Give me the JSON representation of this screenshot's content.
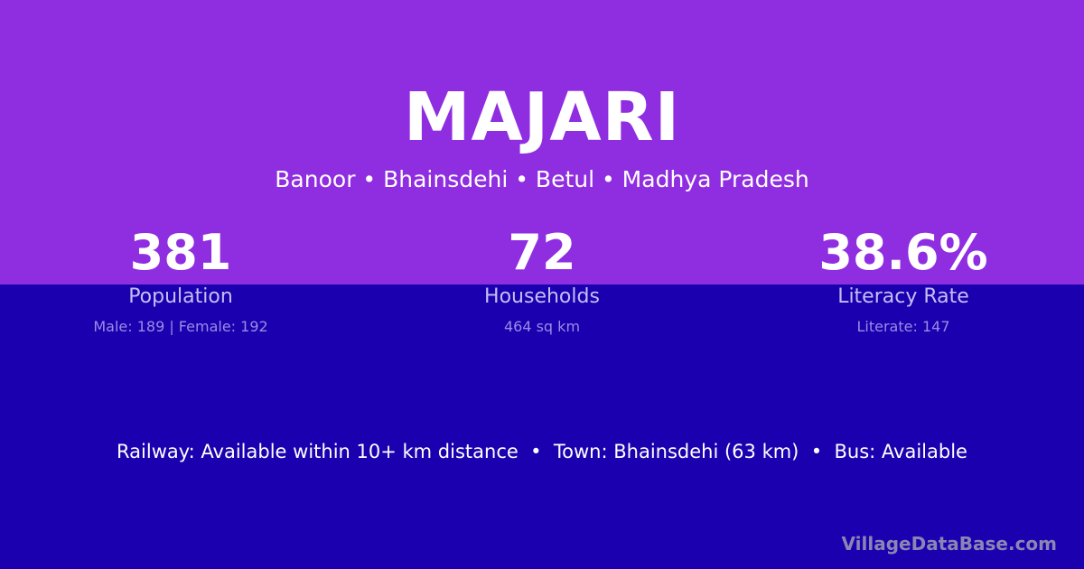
{
  "village": {
    "name": "MAJARI",
    "location": "Banoor • Bhainsdehi • Betul • Madhya Pradesh"
  },
  "stats": [
    {
      "value": "381",
      "label": "Population",
      "detail": "Male: 189 | Female: 192"
    },
    {
      "value": "72",
      "label": "Households",
      "detail": "464 sq km"
    },
    {
      "value": "38.6%",
      "label": "Literacy Rate",
      "detail": "Literate: 147"
    }
  ],
  "info": {
    "railway": "Railway: Available within 10+ km distance",
    "town": "Town: Bhainsdehi (63 km)",
    "bus": "Bus: Available",
    "separator": "•"
  },
  "watermark": "VillageDataBase.com",
  "colors": {
    "top_band": "#8f2de1",
    "bottom_band": "#1a00ae"
  }
}
